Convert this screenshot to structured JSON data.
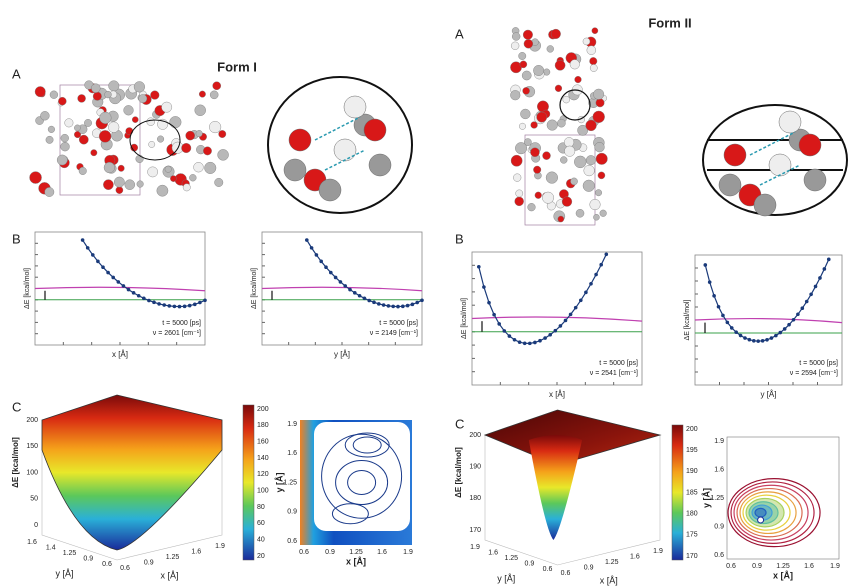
{
  "figure": {
    "form1": {
      "title": "Form I",
      "panel_a": "A",
      "panel_b": "B",
      "panel_c": "C",
      "b_plots": [
        {
          "ylabel": "ΔE [kcal/mol]",
          "xlabel": "x [Å]",
          "time": "t = 5000 [ps]",
          "freq": "ν = 2601 [cm⁻¹]"
        },
        {
          "ylabel": "ΔE [kcal/mol]",
          "xlabel": "y [Å]",
          "time": "t = 5000 [ps]",
          "freq": "ν = 2149 [cm⁻¹]"
        }
      ],
      "surface": {
        "zlabel": "ΔE [kcal/mol]",
        "zticks": [
          200,
          150,
          100,
          50,
          0
        ],
        "ylabel": "y [Å]",
        "yticks": [
          1.6,
          1.4,
          1.25,
          0.9,
          0.6
        ],
        "xlabel": "x [Å]",
        "xticks": [
          0.6,
          0.9,
          1.25,
          1.6,
          1.9
        ]
      },
      "colorbar": {
        "ticks": [
          200,
          180,
          160,
          140,
          120,
          100,
          80,
          60,
          40,
          20
        ]
      },
      "contour": {
        "ylabel": "y [Å]",
        "xlabel": "x [Å]",
        "yticks": [
          1.9,
          1.6,
          1.25,
          0.9,
          0.6
        ],
        "xticks": [
          0.6,
          0.9,
          1.25,
          1.6,
          1.9
        ]
      }
    },
    "form2": {
      "title": "Form II",
      "panel_a": "A",
      "panel_b": "B",
      "panel_c": "C",
      "b_plots": [
        {
          "ylabel": "ΔE [kcal/mol]",
          "xlabel": "x [Å]",
          "time": "t = 5000 [ps]",
          "freq": "ν = 2541 [cm⁻¹]"
        },
        {
          "ylabel": "ΔE [kcal/mol]",
          "xlabel": "y [Å]",
          "time": "t = 5000 [ps]",
          "freq": "ν = 2594 [cm⁻¹]"
        }
      ],
      "surface": {
        "zlabel": "ΔE [kcal/mol]",
        "zticks": [
          200,
          190,
          180,
          170
        ],
        "ylabel": "y [Å]",
        "yticks": [
          1.9,
          1.6,
          1.25,
          0.9,
          0.6
        ],
        "xlabel": "x [Å]",
        "xticks": [
          0.6,
          0.9,
          1.25,
          1.6,
          1.9
        ]
      },
      "colorbar": {
        "ticks": [
          200,
          195,
          190,
          185,
          180,
          175,
          170
        ]
      },
      "contour": {
        "ylabel": "y [Å]",
        "xlabel": "x [Å]",
        "yticks": [
          1.9,
          1.6,
          1.25,
          0.9,
          0.6
        ],
        "xticks": [
          0.6,
          0.9,
          1.25,
          1.6,
          1.9
        ]
      }
    }
  }
}
